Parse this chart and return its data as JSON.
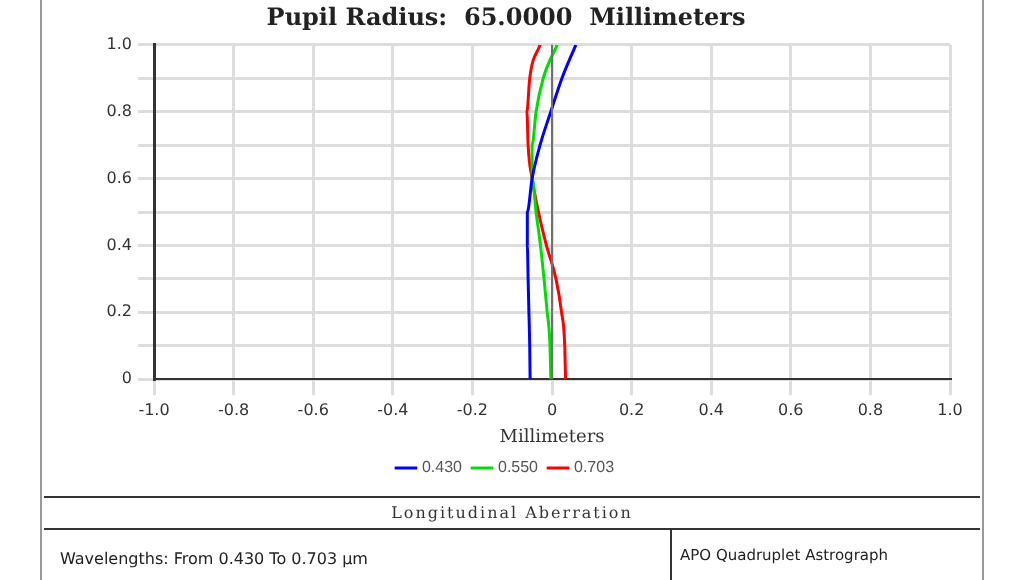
{
  "chart_data": {
    "type": "line",
    "title": "Pupil Radius:  65.0000  Millimeters",
    "xlabel": "Millimeters",
    "xlim": [
      -1,
      1
    ],
    "xticks": [
      {
        "value": -1,
        "label": "-1.0"
      },
      -0.8,
      -0.6,
      -0.4,
      -0.2,
      0,
      0.2,
      0.4,
      0.6,
      0.8,
      {
        "value": 1,
        "label": "1.0"
      }
    ],
    "ylim": [
      0,
      1
    ],
    "yticks": [
      0,
      {
        "value": 0.1,
        "label": null
      },
      0.2,
      {
        "value": 0.3,
        "label": null
      },
      0.4,
      {
        "value": 0.5,
        "label": null
      },
      0.6,
      {
        "value": 0.7,
        "label": null
      },
      0.8,
      {
        "value": 0.9,
        "label": null
      },
      {
        "value": 1,
        "label": "1.0"
      }
    ],
    "grid": true,
    "legend": "bottom",
    "marker": "none",
    "line_style": "solid",
    "ref_lines": [
      {
        "axis": "x",
        "value": 0,
        "color": "#707070"
      }
    ],
    "series": [
      {
        "name": "0.430",
        "color": "#0000ff",
        "x": [
          -0.055,
          -0.056,
          -0.058,
          -0.06,
          -0.062,
          -0.062,
          -0.05,
          -0.03,
          -0.003,
          0.025,
          0.06
        ],
        "values": [
          0,
          0.1,
          0.2,
          0.3,
          0.4,
          0.5,
          0.6,
          0.7,
          0.8,
          0.9,
          1
        ]
      },
      {
        "name": "0.550",
        "color": "#00dd00",
        "x": [
          -0.003,
          -0.005,
          -0.012,
          -0.02,
          -0.029,
          -0.04,
          -0.05,
          -0.05,
          -0.04,
          -0.022,
          0.013
        ],
        "values": [
          0,
          0.1,
          0.2,
          0.3,
          0.4,
          0.5,
          0.6,
          0.7,
          0.8,
          0.9,
          1
        ]
      },
      {
        "name": "0.703",
        "color": "#ff0000",
        "x": [
          0.034,
          0.032,
          0.024,
          0.01,
          -0.014,
          -0.034,
          -0.05,
          -0.06,
          -0.063,
          -0.056,
          -0.03
        ],
        "values": [
          0,
          0.1,
          0.2,
          0.3,
          0.4,
          0.5,
          0.6,
          0.7,
          0.8,
          0.9,
          1
        ]
      }
    ],
    "annotations": [
      "Longitudinal Aberration",
      "Wavelengths:  From 0.430 To 0.703 µm",
      "APO Quadruplet Astrograph"
    ]
  }
}
